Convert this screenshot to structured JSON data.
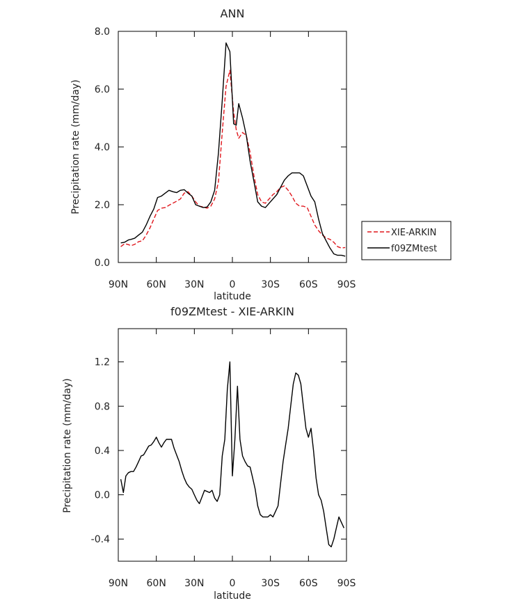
{
  "chart_data": [
    {
      "type": "line",
      "title": "ANN",
      "xlabel": "latitude",
      "ylabel": "Precipitation rate (mm/day)",
      "xlim": [
        90,
        -90
      ],
      "ylim": [
        0,
        8
      ],
      "x_ticks": [
        {
          "value": 90,
          "label": "90N"
        },
        {
          "value": 60,
          "label": "60N"
        },
        {
          "value": 30,
          "label": "30N"
        },
        {
          "value": 0,
          "label": "0"
        },
        {
          "value": -30,
          "label": "30S"
        },
        {
          "value": -60,
          "label": "60S"
        },
        {
          "value": -90,
          "label": "90S"
        }
      ],
      "y_ticks": [
        {
          "value": 0,
          "label": "0.0"
        },
        {
          "value": 2,
          "label": "2.0"
        },
        {
          "value": 4,
          "label": "4.0"
        },
        {
          "value": 6,
          "label": "6.0"
        },
        {
          "value": 8,
          "label": "8.0"
        }
      ],
      "legend_position": "right",
      "series": [
        {
          "name": "XIE-ARKIN",
          "color": "#e0161c",
          "dash": "dashed",
          "x": [
            88,
            85,
            82,
            80,
            77,
            74,
            71,
            68,
            65,
            62,
            59,
            56,
            53,
            50,
            47,
            44,
            41,
            38,
            35,
            32,
            29,
            26,
            23,
            20,
            17,
            14,
            11,
            8,
            5,
            2,
            -1,
            -3,
            -5,
            -8,
            -11,
            -14,
            -17,
            -20,
            -23,
            -26,
            -29,
            -32,
            -35,
            -38,
            -41,
            -44,
            -47,
            -50,
            -53,
            -56,
            -59,
            -62,
            -65,
            -68,
            -71,
            -74,
            -77,
            -80,
            -83,
            -86,
            -89
          ],
          "y": [
            0.55,
            0.65,
            0.62,
            0.58,
            0.63,
            0.72,
            0.75,
            0.95,
            1.2,
            1.5,
            1.8,
            1.88,
            1.9,
            1.98,
            2.05,
            2.12,
            2.2,
            2.4,
            2.45,
            2.3,
            2.1,
            1.95,
            1.92,
            1.88,
            1.95,
            2.2,
            2.8,
            4.5,
            6.1,
            6.65,
            5.2,
            4.6,
            4.3,
            4.5,
            4.4,
            3.8,
            3.0,
            2.35,
            2.1,
            2.05,
            2.2,
            2.35,
            2.45,
            2.6,
            2.65,
            2.5,
            2.3,
            2.05,
            1.95,
            1.95,
            1.9,
            1.6,
            1.3,
            1.1,
            0.95,
            0.85,
            0.8,
            0.7,
            0.55,
            0.5,
            0.52
          ]
        },
        {
          "name": "f09ZMtest",
          "color": "#000000",
          "dash": "solid",
          "x": [
            88,
            85,
            82,
            80,
            77,
            74,
            71,
            68,
            65,
            62,
            59,
            56,
            53,
            50,
            47,
            44,
            41,
            38,
            35,
            32,
            29,
            26,
            23,
            20,
            17,
            14,
            11,
            8,
            5,
            2,
            -1,
            -3,
            -5,
            -8,
            -11,
            -14,
            -17,
            -20,
            -23,
            -26,
            -29,
            -32,
            -35,
            -38,
            -41,
            -44,
            -47,
            -50,
            -53,
            -56,
            -59,
            -62,
            -65,
            -68,
            -71,
            -74,
            -77,
            -80,
            -83,
            -86,
            -89
          ],
          "y": [
            0.68,
            0.7,
            0.78,
            0.8,
            0.84,
            0.95,
            1.05,
            1.3,
            1.6,
            1.85,
            2.25,
            2.3,
            2.4,
            2.5,
            2.45,
            2.42,
            2.5,
            2.52,
            2.4,
            2.3,
            2.0,
            1.95,
            1.9,
            1.92,
            2.1,
            2.5,
            3.8,
            5.6,
            7.6,
            7.3,
            4.8,
            4.75,
            5.5,
            5.0,
            4.4,
            3.5,
            2.8,
            2.1,
            1.95,
            1.9,
            2.05,
            2.2,
            2.35,
            2.6,
            2.85,
            3.0,
            3.1,
            3.1,
            3.1,
            3.0,
            2.65,
            2.3,
            2.1,
            1.5,
            1.0,
            0.75,
            0.5,
            0.3,
            0.25,
            0.25,
            0.22
          ]
        }
      ]
    },
    {
      "type": "line",
      "title": "f09ZMtest - XIE-ARKIN",
      "xlabel": "latitude",
      "ylabel": "Precipitation rate (mm/day)",
      "xlim": [
        90,
        -90
      ],
      "ylim": [
        -0.6,
        1.5
      ],
      "x_ticks": [
        {
          "value": 90,
          "label": "90N"
        },
        {
          "value": 60,
          "label": "60N"
        },
        {
          "value": 30,
          "label": "30N"
        },
        {
          "value": 0,
          "label": "0"
        },
        {
          "value": -30,
          "label": "30S"
        },
        {
          "value": -60,
          "label": "60S"
        },
        {
          "value": -90,
          "label": "90S"
        }
      ],
      "y_ticks": [
        {
          "value": -0.4,
          "label": "-0.4"
        },
        {
          "value": 0.0,
          "label": "0.0"
        },
        {
          "value": 0.4,
          "label": "0.4"
        },
        {
          "value": 0.8,
          "label": "0.8"
        },
        {
          "value": 1.2,
          "label": "1.2"
        }
      ],
      "series": [
        {
          "name": "f09ZMtest - XIE-ARKIN",
          "color": "#000000",
          "dash": "solid",
          "x": [
            88,
            86,
            84,
            82,
            80,
            78,
            76,
            74,
            72,
            70,
            68,
            66,
            64,
            62,
            60,
            58,
            56,
            54,
            52,
            50,
            48,
            46,
            44,
            42,
            40,
            38,
            36,
            34,
            32,
            30,
            28,
            26,
            24,
            22,
            20,
            18,
            16,
            14,
            12,
            10,
            8,
            6,
            4,
            2,
            0,
            -2,
            -4,
            -6,
            -8,
            -10,
            -12,
            -14,
            -16,
            -18,
            -20,
            -22,
            -24,
            -26,
            -28,
            -30,
            -32,
            -34,
            -36,
            -38,
            -40,
            -42,
            -44,
            -46,
            -48,
            -50,
            -52,
            -54,
            -56,
            -58,
            -60,
            -62,
            -64,
            -66,
            -68,
            -70,
            -72,
            -74,
            -76,
            -78,
            -80,
            -82,
            -84,
            -86,
            -88
          ],
          "y": [
            0.14,
            0.02,
            0.17,
            0.2,
            0.21,
            0.21,
            0.25,
            0.3,
            0.35,
            0.36,
            0.4,
            0.44,
            0.45,
            0.48,
            0.52,
            0.47,
            0.43,
            0.47,
            0.5,
            0.5,
            0.5,
            0.42,
            0.36,
            0.3,
            0.22,
            0.15,
            0.1,
            0.07,
            0.05,
            0.0,
            -0.05,
            -0.08,
            -0.02,
            0.04,
            0.03,
            0.02,
            0.04,
            -0.03,
            -0.06,
            0.0,
            0.35,
            0.5,
            0.95,
            1.2,
            0.17,
            0.5,
            0.98,
            0.5,
            0.35,
            0.3,
            0.26,
            0.25,
            0.15,
            0.05,
            -0.1,
            -0.18,
            -0.2,
            -0.2,
            -0.2,
            -0.18,
            -0.2,
            -0.15,
            -0.1,
            0.1,
            0.3,
            0.45,
            0.6,
            0.8,
            1.0,
            1.1,
            1.08,
            1.0,
            0.8,
            0.6,
            0.52,
            0.6,
            0.4,
            0.15,
            0.0,
            -0.05,
            -0.15,
            -0.3,
            -0.45,
            -0.47,
            -0.4,
            -0.3,
            -0.2,
            -0.25,
            -0.3
          ]
        }
      ]
    }
  ]
}
